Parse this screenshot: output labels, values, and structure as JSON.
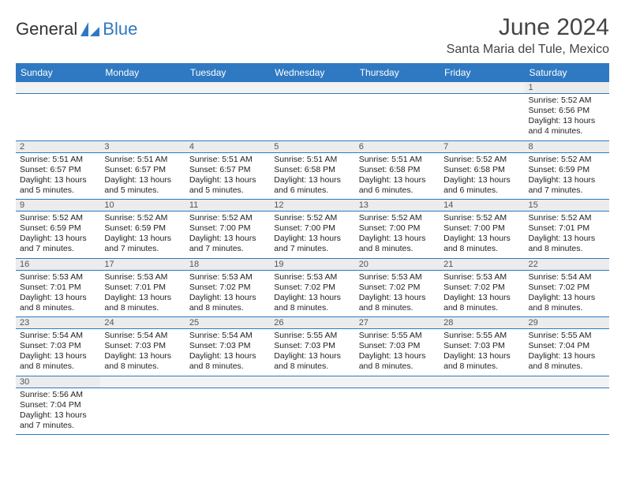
{
  "header": {
    "logo_general": "General",
    "logo_blue": "Blue",
    "month": "June 2024",
    "location": "Santa Maria del Tule, Mexico"
  },
  "dow": [
    "Sunday",
    "Monday",
    "Tuesday",
    "Wednesday",
    "Thursday",
    "Friday",
    "Saturday"
  ],
  "colors": {
    "brand": "#2f79c2",
    "num_bg": "#ececec",
    "blank_bg": "#f3f3f3",
    "text": "#222"
  },
  "weeks": [
    [
      null,
      null,
      null,
      null,
      null,
      null,
      {
        "n": "1",
        "sr": "Sunrise: 5:52 AM",
        "ss": "Sunset: 6:56 PM",
        "dl1": "Daylight: 13 hours",
        "dl2": "and 4 minutes."
      }
    ],
    [
      {
        "n": "2",
        "sr": "Sunrise: 5:51 AM",
        "ss": "Sunset: 6:57 PM",
        "dl1": "Daylight: 13 hours",
        "dl2": "and 5 minutes."
      },
      {
        "n": "3",
        "sr": "Sunrise: 5:51 AM",
        "ss": "Sunset: 6:57 PM",
        "dl1": "Daylight: 13 hours",
        "dl2": "and 5 minutes."
      },
      {
        "n": "4",
        "sr": "Sunrise: 5:51 AM",
        "ss": "Sunset: 6:57 PM",
        "dl1": "Daylight: 13 hours",
        "dl2": "and 5 minutes."
      },
      {
        "n": "5",
        "sr": "Sunrise: 5:51 AM",
        "ss": "Sunset: 6:58 PM",
        "dl1": "Daylight: 13 hours",
        "dl2": "and 6 minutes."
      },
      {
        "n": "6",
        "sr": "Sunrise: 5:51 AM",
        "ss": "Sunset: 6:58 PM",
        "dl1": "Daylight: 13 hours",
        "dl2": "and 6 minutes."
      },
      {
        "n": "7",
        "sr": "Sunrise: 5:52 AM",
        "ss": "Sunset: 6:58 PM",
        "dl1": "Daylight: 13 hours",
        "dl2": "and 6 minutes."
      },
      {
        "n": "8",
        "sr": "Sunrise: 5:52 AM",
        "ss": "Sunset: 6:59 PM",
        "dl1": "Daylight: 13 hours",
        "dl2": "and 7 minutes."
      }
    ],
    [
      {
        "n": "9",
        "sr": "Sunrise: 5:52 AM",
        "ss": "Sunset: 6:59 PM",
        "dl1": "Daylight: 13 hours",
        "dl2": "and 7 minutes."
      },
      {
        "n": "10",
        "sr": "Sunrise: 5:52 AM",
        "ss": "Sunset: 6:59 PM",
        "dl1": "Daylight: 13 hours",
        "dl2": "and 7 minutes."
      },
      {
        "n": "11",
        "sr": "Sunrise: 5:52 AM",
        "ss": "Sunset: 7:00 PM",
        "dl1": "Daylight: 13 hours",
        "dl2": "and 7 minutes."
      },
      {
        "n": "12",
        "sr": "Sunrise: 5:52 AM",
        "ss": "Sunset: 7:00 PM",
        "dl1": "Daylight: 13 hours",
        "dl2": "and 7 minutes."
      },
      {
        "n": "13",
        "sr": "Sunrise: 5:52 AM",
        "ss": "Sunset: 7:00 PM",
        "dl1": "Daylight: 13 hours",
        "dl2": "and 8 minutes."
      },
      {
        "n": "14",
        "sr": "Sunrise: 5:52 AM",
        "ss": "Sunset: 7:00 PM",
        "dl1": "Daylight: 13 hours",
        "dl2": "and 8 minutes."
      },
      {
        "n": "15",
        "sr": "Sunrise: 5:52 AM",
        "ss": "Sunset: 7:01 PM",
        "dl1": "Daylight: 13 hours",
        "dl2": "and 8 minutes."
      }
    ],
    [
      {
        "n": "16",
        "sr": "Sunrise: 5:53 AM",
        "ss": "Sunset: 7:01 PM",
        "dl1": "Daylight: 13 hours",
        "dl2": "and 8 minutes."
      },
      {
        "n": "17",
        "sr": "Sunrise: 5:53 AM",
        "ss": "Sunset: 7:01 PM",
        "dl1": "Daylight: 13 hours",
        "dl2": "and 8 minutes."
      },
      {
        "n": "18",
        "sr": "Sunrise: 5:53 AM",
        "ss": "Sunset: 7:02 PM",
        "dl1": "Daylight: 13 hours",
        "dl2": "and 8 minutes."
      },
      {
        "n": "19",
        "sr": "Sunrise: 5:53 AM",
        "ss": "Sunset: 7:02 PM",
        "dl1": "Daylight: 13 hours",
        "dl2": "and 8 minutes."
      },
      {
        "n": "20",
        "sr": "Sunrise: 5:53 AM",
        "ss": "Sunset: 7:02 PM",
        "dl1": "Daylight: 13 hours",
        "dl2": "and 8 minutes."
      },
      {
        "n": "21",
        "sr": "Sunrise: 5:53 AM",
        "ss": "Sunset: 7:02 PM",
        "dl1": "Daylight: 13 hours",
        "dl2": "and 8 minutes."
      },
      {
        "n": "22",
        "sr": "Sunrise: 5:54 AM",
        "ss": "Sunset: 7:02 PM",
        "dl1": "Daylight: 13 hours",
        "dl2": "and 8 minutes."
      }
    ],
    [
      {
        "n": "23",
        "sr": "Sunrise: 5:54 AM",
        "ss": "Sunset: 7:03 PM",
        "dl1": "Daylight: 13 hours",
        "dl2": "and 8 minutes."
      },
      {
        "n": "24",
        "sr": "Sunrise: 5:54 AM",
        "ss": "Sunset: 7:03 PM",
        "dl1": "Daylight: 13 hours",
        "dl2": "and 8 minutes."
      },
      {
        "n": "25",
        "sr": "Sunrise: 5:54 AM",
        "ss": "Sunset: 7:03 PM",
        "dl1": "Daylight: 13 hours",
        "dl2": "and 8 minutes."
      },
      {
        "n": "26",
        "sr": "Sunrise: 5:55 AM",
        "ss": "Sunset: 7:03 PM",
        "dl1": "Daylight: 13 hours",
        "dl2": "and 8 minutes."
      },
      {
        "n": "27",
        "sr": "Sunrise: 5:55 AM",
        "ss": "Sunset: 7:03 PM",
        "dl1": "Daylight: 13 hours",
        "dl2": "and 8 minutes."
      },
      {
        "n": "28",
        "sr": "Sunrise: 5:55 AM",
        "ss": "Sunset: 7:03 PM",
        "dl1": "Daylight: 13 hours",
        "dl2": "and 8 minutes."
      },
      {
        "n": "29",
        "sr": "Sunrise: 5:55 AM",
        "ss": "Sunset: 7:04 PM",
        "dl1": "Daylight: 13 hours",
        "dl2": "and 8 minutes."
      }
    ],
    [
      {
        "n": "30",
        "sr": "Sunrise: 5:56 AM",
        "ss": "Sunset: 7:04 PM",
        "dl1": "Daylight: 13 hours",
        "dl2": "and 7 minutes."
      },
      null,
      null,
      null,
      null,
      null,
      null
    ]
  ]
}
